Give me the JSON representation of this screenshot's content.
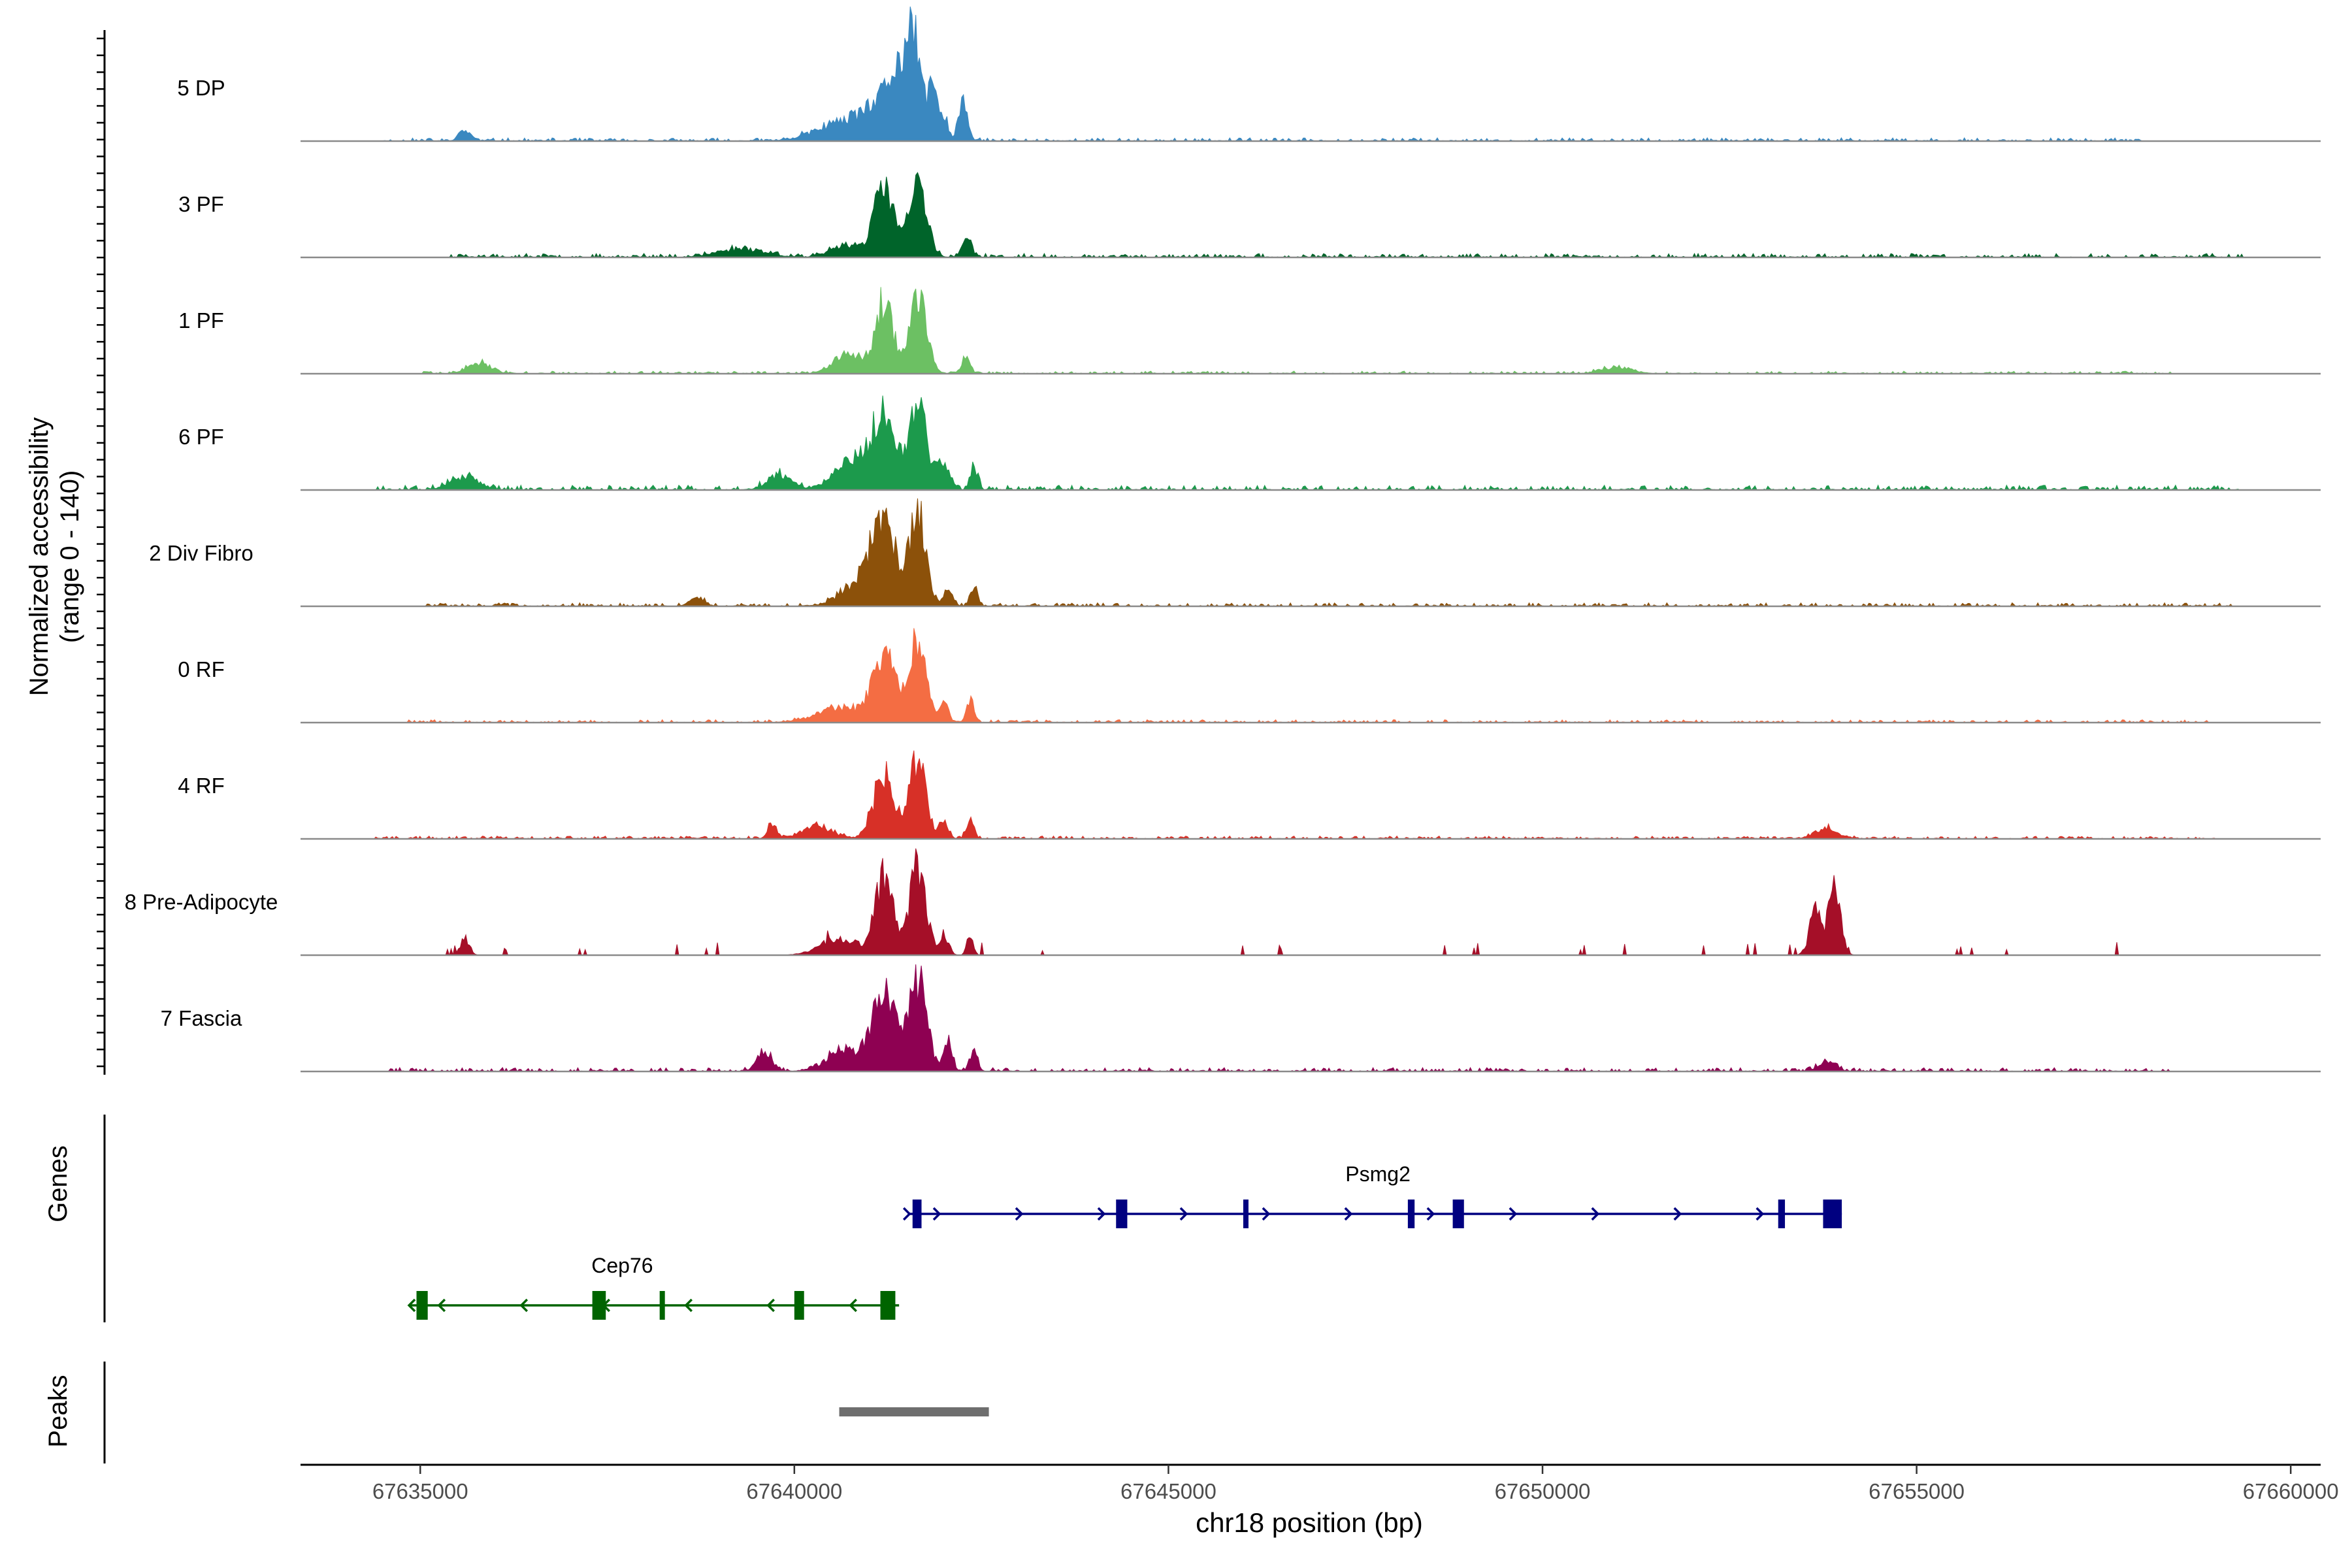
{
  "chart_data": {
    "type": "area",
    "x_axis": {
      "label": "chr18 position (bp)",
      "range": [
        67633400,
        67660400
      ],
      "ticks": [
        67635000,
        67640000,
        67645000,
        67650000,
        67655000,
        67660000
      ],
      "tick_labels": [
        "67635000",
        "67640000",
        "67645000",
        "67650000",
        "67655000",
        "67660000"
      ]
    },
    "y_axis": {
      "label_line1": "Normalized accessibility",
      "label_line2": "(range 0 - 140)",
      "range": [
        0,
        140
      ]
    },
    "panel_labels": {
      "genes": "Genes",
      "peaks": "Peaks"
    },
    "tracks": [
      {
        "name": "5 DP",
        "color": "#3a88c0",
        "peaks": [
          [
            67641400,
            30,
            180
          ],
          [
            67641600,
            40,
            90
          ],
          [
            67641850,
            23,
            60
          ],
          [
            67642000,
            12,
            50
          ],
          [
            67642250,
            18,
            60
          ],
          [
            67641000,
            11,
            250
          ],
          [
            67640500,
            6,
            300
          ],
          [
            67635600,
            5,
            80
          ]
        ],
        "noise_from": 67634500,
        "noise_to": 67658000,
        "noise": 1.5,
        "seed": 11
      },
      {
        "name": "3 PF",
        "color": "#00642a",
        "peaks": [
          [
            67641200,
            33,
            130
          ],
          [
            67641650,
            32,
            120
          ],
          [
            67642300,
            10,
            60
          ],
          [
            67640700,
            6,
            200
          ],
          [
            67639300,
            4,
            300
          ]
        ],
        "noise_from": 67635400,
        "noise_to": 67659400,
        "noise": 1.8,
        "seed": 23
      },
      {
        "name": "1 PF",
        "color": "#6cc063",
        "peaks": [
          [
            67641200,
            34,
            120
          ],
          [
            67641650,
            38,
            110
          ],
          [
            67642300,
            9,
            50
          ],
          [
            67640700,
            10,
            180
          ],
          [
            67635800,
            5,
            150
          ],
          [
            67651000,
            3,
            200
          ]
        ],
        "noise_from": 67635000,
        "noise_to": 67658500,
        "noise": 1.2,
        "seed": 37
      },
      {
        "name": "6 PF",
        "color": "#1c9a4c",
        "peaks": [
          [
            67641200,
            32,
            150
          ],
          [
            67641650,
            40,
            120
          ],
          [
            67642000,
            12,
            80
          ],
          [
            67642400,
            10,
            50
          ],
          [
            67640800,
            14,
            250
          ],
          [
            67639800,
            7,
            150
          ],
          [
            67635600,
            6,
            180
          ]
        ],
        "noise_from": 67634400,
        "noise_to": 67659300,
        "noise": 2.2,
        "seed": 51
      },
      {
        "name": "2 Div Fibro",
        "color": "#8c510a",
        "peaks": [
          [
            67641200,
            38,
            150
          ],
          [
            67641650,
            44,
            110
          ],
          [
            67642050,
            8,
            60
          ],
          [
            67642400,
            9,
            50
          ],
          [
            67640900,
            12,
            250
          ],
          [
            67638700,
            4,
            100
          ]
        ],
        "noise_from": 67635000,
        "noise_to": 67659200,
        "noise": 1.6,
        "seed": 67
      },
      {
        "name": "0 RF",
        "color": "#f46d43",
        "peaks": [
          [
            67641200,
            32,
            150
          ],
          [
            67641650,
            40,
            110
          ],
          [
            67642000,
            8,
            60
          ],
          [
            67642350,
            11,
            50
          ],
          [
            67640600,
            7,
            300
          ]
        ],
        "noise_from": 67634800,
        "noise_to": 67659000,
        "noise": 1.3,
        "seed": 79
      },
      {
        "name": "4 RF",
        "color": "#d73027",
        "peaks": [
          [
            67641200,
            30,
            140
          ],
          [
            67641650,
            36,
            110
          ],
          [
            67642000,
            8,
            60
          ],
          [
            67642350,
            9,
            50
          ],
          [
            67640300,
            6,
            200
          ],
          [
            67639700,
            7,
            60
          ],
          [
            67653800,
            5,
            150
          ]
        ],
        "noise_from": 67634400,
        "noise_to": 67659000,
        "noise": 1.3,
        "seed": 97
      },
      {
        "name": "8 Pre-Adipocyte",
        "color": "#a50f28",
        "peaks": [
          [
            67641200,
            36,
            120
          ],
          [
            67641650,
            42,
            110
          ],
          [
            67642000,
            10,
            60
          ],
          [
            67642350,
            11,
            40
          ],
          [
            67640600,
            8,
            250
          ],
          [
            67653650,
            20,
            80
          ],
          [
            67653900,
            30,
            80
          ],
          [
            67635600,
            8,
            60
          ]
        ],
        "noise_from": 67635000,
        "noise_to": 67659400,
        "noise": 4,
        "sparse": true,
        "seed": 113
      },
      {
        "name": "7 Fascia",
        "color": "#8e0152",
        "peaks": [
          [
            67641200,
            36,
            150
          ],
          [
            67641650,
            42,
            120
          ],
          [
            67642050,
            14,
            60
          ],
          [
            67642400,
            11,
            50
          ],
          [
            67640700,
            10,
            250
          ],
          [
            67639600,
            9,
            100
          ],
          [
            67653800,
            5,
            100
          ]
        ],
        "noise_from": 67634500,
        "noise_to": 67658400,
        "noise": 1.8,
        "seed": 131
      }
    ],
    "genes": [
      {
        "name": "Psmg2",
        "strand": "+",
        "color": "#000080",
        "start": 67641540,
        "end": 67654000,
        "label_at": 67647800,
        "exons": [
          [
            67641580,
            67641700
          ],
          [
            67644300,
            67644450
          ],
          [
            67646000,
            67646040
          ],
          [
            67648200,
            67648290
          ],
          [
            67648800,
            67648950
          ],
          [
            67653150,
            67653240
          ],
          [
            67653750,
            67654000
          ]
        ]
      },
      {
        "name": "Cep76",
        "strand": "-",
        "color": "#006400",
        "start": 67634850,
        "end": 67641400,
        "label_at": 67637700,
        "exons": [
          [
            67634950,
            67635100
          ],
          [
            67637300,
            67637480
          ],
          [
            67638200,
            67638240
          ],
          [
            67640000,
            67640130
          ],
          [
            67641150,
            67641350
          ]
        ]
      }
    ],
    "peak_regions": [
      {
        "start": 67640600,
        "end": 67642600,
        "color": "#6e6e6e"
      }
    ]
  }
}
